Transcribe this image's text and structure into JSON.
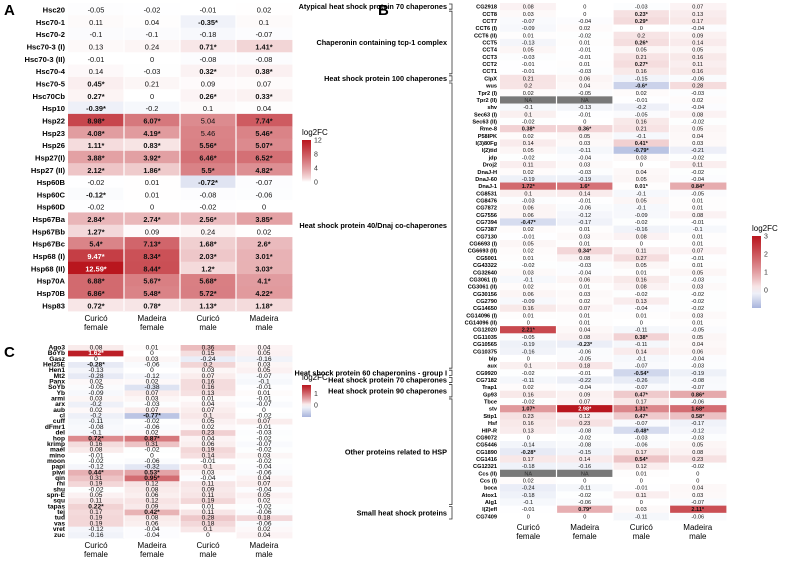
{
  "chart_data": [
    {
      "type": "heatmap",
      "panel_label": "A",
      "columns": [
        "Curicó\nfemale",
        "Madeira\nfemale",
        "Curicó\nmale",
        "Madeira\nmale"
      ],
      "rows": [
        "Hsc20",
        "Hsc70-1",
        "Hsc70-2",
        "Hsc70-3 (I)",
        "Hsc70-3 (II)",
        "Hsc70-4",
        "Hsc70-5",
        "Hsc70Cb",
        "Hsp10",
        "Hsp22",
        "Hsp23",
        "Hsp26",
        "Hsp27(I)",
        "Hsp27 (II)",
        "Hsp60B",
        "Hsp60C",
        "Hsp60D",
        "Hsp67Ba",
        "Hsp67Bb",
        "Hsp67Bc",
        "Hsp68 (I)",
        "Hsp68 (II)",
        "Hsp70A",
        "Hsp70B",
        "Hsp83"
      ],
      "values": [
        [
          "-0.05",
          "-0.02",
          "-0.01",
          "0.02"
        ],
        [
          "0.11",
          "0.04",
          "-0.35*",
          "0.1"
        ],
        [
          "-0.1",
          "-0.1",
          "-0.18",
          "-0.07"
        ],
        [
          "0.13",
          "0.24",
          "0.71*",
          "1.41*"
        ],
        [
          "-0.01",
          "0",
          "-0.08",
          "-0.08"
        ],
        [
          "0.14",
          "-0.03",
          "0.32*",
          "0.38*"
        ],
        [
          "0.45*",
          "0.21",
          "0.09",
          "0.07"
        ],
        [
          "0.27*",
          "0",
          "0.26*",
          "0.33*"
        ],
        [
          "-0.39*",
          "-0.2",
          "0.1",
          "0.04"
        ],
        [
          "8.98*",
          "6.07*",
          "5.04",
          "7.74*"
        ],
        [
          "4.08*",
          "4.19*",
          "5.46",
          "5.46*"
        ],
        [
          "1.11*",
          "0.83*",
          "5.56*",
          "5.07*"
        ],
        [
          "3.88*",
          "3.92*",
          "6.46*",
          "6.52*"
        ],
        [
          "2.12*",
          "1.86*",
          "5.5*",
          "4.82*"
        ],
        [
          "-0.02",
          "0.01",
          "-0.72*",
          "-0.07"
        ],
        [
          "-0.12*",
          "0.01",
          "-0.08",
          "-0.06"
        ],
        [
          "-0.02",
          "0",
          "-0.02",
          "0"
        ],
        [
          "2.84*",
          "2.74*",
          "2.56*",
          "3.85*"
        ],
        [
          "1.27*",
          "0.09",
          "0.24",
          "0.02"
        ],
        [
          "5.4*",
          "7.13*",
          "1.68*",
          "2.6*"
        ],
        [
          "9.47*",
          "8.34*",
          "2.03*",
          "3.01*"
        ],
        [
          "12.59*",
          "8.44*",
          "1.2*",
          "3.03*"
        ],
        [
          "6.88*",
          "5.67*",
          "5.68*",
          "4.1*"
        ],
        [
          "6.86*",
          "5.48*",
          "5.72*",
          "4.22*"
        ],
        [
          "0.72*",
          "0.78*",
          "1.13*",
          "1.18*"
        ]
      ],
      "legend": {
        "title": "log2FC",
        "ticks": [
          "12",
          "8",
          "4",
          "0"
        ],
        "range": [
          0,
          12
        ]
      }
    },
    {
      "type": "heatmap",
      "panel_label": "B",
      "columns": [
        "Curicó\nfemale",
        "Madeira\nfemale",
        "Curicó\nmale",
        "Madeira\nmale"
      ],
      "rows": [
        "CG2918",
        "CCT8",
        "CCT7",
        "CCT6 (I)",
        "CCT6 (II)",
        "CCT5",
        "CCT4",
        "CCT3",
        "CCT2",
        "CCT1",
        "ClpX",
        "wus",
        "Tpr2 (I)",
        "Tpr2 (II)",
        "shv",
        "Sec63 (I)",
        "Sec63 (II)",
        "Rme-8",
        "P58IPK",
        "l(3)80Fg",
        "l(2)tid",
        "jdp",
        "Droj2",
        "DnaJ-H",
        "DnaJ-60",
        "DnaJ-1",
        "CG8531",
        "CG8476",
        "CG7872",
        "CG7556",
        "CG7394",
        "CG7387",
        "CG7130",
        "CG6693 (I)",
        "CG6693 (II)",
        "CG5001",
        "CG43322",
        "CG32640",
        "CG3061 (I)",
        "CG3061 (II)",
        "CG30156",
        "CG2790",
        "CG14650",
        "CG14096 (I)",
        "CG14096 (II)",
        "CG12020",
        "CG11035",
        "CG10565",
        "CG10375",
        "blp",
        "aux",
        "CG9920",
        "CG7182",
        "Trap1",
        "Gp93",
        "Tbce",
        "stv",
        "Stip1",
        "Hsf",
        "HIP-R",
        "CG9072",
        "CG5446",
        "CG1890",
        "CG1416",
        "CG12321",
        "Ccs (II)",
        "Ccs (I)",
        "boca",
        "Atox1",
        "Alg1",
        "l(2)efl",
        "CG7409"
      ],
      "values": [
        [
          "0.08",
          "0",
          "-0.03",
          "0.07"
        ],
        [
          "0.03",
          "0",
          "0.23*",
          "0.13"
        ],
        [
          "-0.07",
          "-0.04",
          "0.29*",
          "0.17"
        ],
        [
          "-0.09",
          "0.02",
          "0",
          "-0.04"
        ],
        [
          "0.01",
          "-0.02",
          "0.2",
          "0.09"
        ],
        [
          "-0.13",
          "0.01",
          "0.26*",
          "0.14"
        ],
        [
          "0.05",
          "-0.01",
          "0.05",
          "0.05"
        ],
        [
          "-0.03",
          "-0.01",
          "0.21",
          "0.16"
        ],
        [
          "-0.01",
          "0.01",
          "0.27*",
          "0.11"
        ],
        [
          "-0.01",
          "-0.03",
          "0.16",
          "0.16"
        ],
        [
          "0.21",
          "0.06",
          "-0.15",
          "-0.06"
        ],
        [
          "0.2",
          "0.04",
          "-0.6*",
          "0.28"
        ],
        [
          "0.02",
          "-0.05",
          "0.02",
          "-0.03"
        ],
        [
          "NA",
          "NA",
          "-0.01",
          "0.02"
        ],
        [
          "-0.1",
          "-0.13",
          "-0.2",
          "-0.04"
        ],
        [
          "0.1",
          "-0.01",
          "-0.05",
          "0.08"
        ],
        [
          "-0.02",
          "0",
          "0.16",
          "-0.02"
        ],
        [
          "0.38*",
          "0.36*",
          "0.21",
          "0.05"
        ],
        [
          "0.02",
          "0.05",
          "-0.1",
          "0.04"
        ],
        [
          "0.14",
          "0.03",
          "0.41*",
          "0.03"
        ],
        [
          "0.05",
          "-0.11",
          "-0.79*",
          "-0.21"
        ],
        [
          "-0.02",
          "-0.04",
          "0.03",
          "-0.02"
        ],
        [
          "0.11",
          "0.03",
          "0",
          "0.11"
        ],
        [
          "0.02",
          "-0.03",
          "0.04",
          "-0.02"
        ],
        [
          "-0.19",
          "-0.19",
          "0.05",
          "-0.04"
        ],
        [
          "1.72*",
          "1.6*",
          "0.01*",
          "0.84*"
        ],
        [
          "0.1",
          "0.14",
          "-0.1",
          "-0.05"
        ],
        [
          "-0.03",
          "-0.01",
          "0.05",
          "0.01"
        ],
        [
          "0.06",
          "-0.06",
          "-0.1",
          "0.01"
        ],
        [
          "0.06",
          "-0.12",
          "-0.09",
          "0.08"
        ],
        [
          "-0.47*",
          "-0.17",
          "-0.02",
          "-0.01"
        ],
        [
          "0.02",
          "0.01",
          "-0.16",
          "-0.1"
        ],
        [
          "-0.01",
          "0.03",
          "0.08",
          "0.01"
        ],
        [
          "0.05",
          "0.01",
          "0",
          "0.01"
        ],
        [
          "0.02",
          "0.34*",
          "0.11",
          "0.07"
        ],
        [
          "0.01",
          "0.08",
          "0.27",
          "-0.01"
        ],
        [
          "-0.02",
          "-0.03",
          "0.05",
          "0.01"
        ],
        [
          "0.03",
          "-0.04",
          "0.01",
          "0.05"
        ],
        [
          "-0.1",
          "0.06",
          "0.16",
          "-0.03"
        ],
        [
          "0.02",
          "0.01",
          "0.08",
          "0.03"
        ],
        [
          "0.06",
          "0.03",
          "-0.02",
          "-0.02"
        ],
        [
          "-0.09",
          "0.02",
          "0.13",
          "-0.02"
        ],
        [
          "0.16",
          "0.07",
          "-0.04",
          "-0.02"
        ],
        [
          "0.01",
          "0.01",
          "0.01",
          "0.03"
        ],
        [
          "0",
          "0.01",
          "0",
          "0.01"
        ],
        [
          "2.21*",
          "0.04",
          "-0.11",
          "-0.05"
        ],
        [
          "-0.05",
          "0.08",
          "0.38*",
          "0.05"
        ],
        [
          "-0.19",
          "-0.23*",
          "-0.11",
          "0.04"
        ],
        [
          "-0.16",
          "-0.06",
          "0.14",
          "0.06"
        ],
        [
          "0",
          "-0.05",
          "-0.1",
          "-0.04"
        ],
        [
          "0.1",
          "0.18",
          "-0.07",
          "-0.03"
        ],
        [
          "-0.02",
          "-0.01",
          "-0.54*",
          "-0.19"
        ],
        [
          "-0.11",
          "-0.22",
          "-0.26",
          "-0.08"
        ],
        [
          "0.02",
          "-0.04",
          "-0.07",
          "-0.07"
        ],
        [
          "0.16",
          "0.09",
          "0.47*",
          "0.86*"
        ],
        [
          "-0.02",
          "0.07",
          "0.17",
          "-0.06"
        ],
        [
          "1.07*",
          "2.98*",
          "1.31*",
          "1.68*"
        ],
        [
          "0.23",
          "0.12",
          "0.47*",
          "0.58*"
        ],
        [
          "0.16",
          "0.23",
          "-0.07",
          "-0.17"
        ],
        [
          "0.13",
          "-0.08",
          "-0.48*",
          "-0.12"
        ],
        [
          "0",
          "-0.02",
          "-0.03",
          "-0.03"
        ],
        [
          "-0.14",
          "-0.08",
          "-0.06",
          "0.05"
        ],
        [
          "-0.28*",
          "-0.15",
          "0.17",
          "0.08"
        ],
        [
          "0.17",
          "0.14",
          "0.54*",
          "0.23"
        ],
        [
          "-0.18",
          "-0.16",
          "0.12",
          "-0.02"
        ],
        [
          "NA",
          "NA",
          "0.01",
          "0"
        ],
        [
          "0.02",
          "0",
          "0",
          "0"
        ],
        [
          "-0.24",
          "-0.11",
          "-0.01",
          "0.04"
        ],
        [
          "-0.18",
          "-0.02",
          "0.11",
          "0.03"
        ],
        [
          "-0.1",
          "-0.06",
          "0",
          "-0.07"
        ],
        [
          "-0.01",
          "0.79*",
          "0.03",
          "2.11*"
        ],
        [
          "0",
          "0",
          "-0.11",
          "-0.06"
        ]
      ],
      "groups": [
        {
          "label": "Atypical heat shock protein 70 chaperones",
          "start": 0,
          "end": 0
        },
        {
          "label": "Chaperonin containing tcp-1 complex",
          "start": 1,
          "end": 9
        },
        {
          "label": "Heat shock protein 100 chaperones",
          "start": 10,
          "end": 10
        },
        {
          "label": "Heat shock protein 40/Dnaj co-chaperones",
          "start": 11,
          "end": 50
        },
        {
          "label": "Heat shock protein 60 chaperonins - group I",
          "start": 51,
          "end": 51
        },
        {
          "label": "Heat shock protein 70 chaperones",
          "start": 52,
          "end": 52
        },
        {
          "label": "Heat shock protein 90 chaperones",
          "start": 53,
          "end": 54
        },
        {
          "label": "Other proteins related to HSP",
          "start": 55,
          "end": 69
        },
        {
          "label": "Small heat shock proteins",
          "start": 70,
          "end": 71
        }
      ],
      "legend": {
        "title": "log2FC",
        "ticks": [
          "3",
          "2",
          "1",
          "0"
        ],
        "range": [
          -1,
          3
        ]
      }
    },
    {
      "type": "heatmap",
      "panel_label": "C",
      "columns": [
        "Curicó\nfemale",
        "Madeira\nfemale",
        "Curicó\nmale",
        "Madeira\nmale"
      ],
      "rows": [
        "Ago3",
        "BoYb",
        "Gasz",
        "Hel25E",
        "Hen1",
        "Mt2",
        "Panx",
        "SoYb",
        "Yb",
        "armi",
        "arx",
        "aub",
        "cl",
        "cuff",
        "dFmr1",
        "del",
        "hop",
        "krimp",
        "mael",
        "mino",
        "moon",
        "papi",
        "piwi",
        "qin",
        "rhi",
        "shu",
        "spn-E",
        "squ",
        "tapas",
        "tej",
        "tud",
        "vas",
        "vret",
        "zuc"
      ],
      "values": [
        [
          "0.08",
          "0.01",
          "0.36",
          "0.04"
        ],
        [
          "1.62*",
          "0",
          "0.15",
          "0.05"
        ],
        [
          "0",
          "0.03",
          "-0.24",
          "-0.16"
        ],
        [
          "-0.28*",
          "-0.06",
          "0.2",
          "0.03"
        ],
        [
          "-0.13",
          "0",
          "0.03",
          "0.05"
        ],
        [
          "-0.28",
          "-0.12",
          "0.07",
          "-0.07"
        ],
        [
          "0.02",
          "0.02",
          "0.16",
          "-0.1"
        ],
        [
          "-0.05",
          "-0.38",
          "0.16",
          "-0.01"
        ],
        [
          "-0.09",
          "0.07",
          "0.13",
          "0.01"
        ],
        [
          "0.03",
          "0.03",
          "0.01",
          "-0.01"
        ],
        [
          "-0.2",
          "-0.03",
          "0.04",
          "-0.07"
        ],
        [
          "0.02",
          "0.07",
          "0.07",
          "0"
        ],
        [
          "-0.2",
          "-0.77*",
          "0.1",
          "-0.02"
        ],
        [
          "-0.11",
          "-0.02",
          "0.05",
          "0.07"
        ],
        [
          "-0.08",
          "-0.06",
          "0.02",
          "-0.01"
        ],
        [
          "-0.1",
          "0.02",
          "0.23",
          "-0.03"
        ],
        [
          "0.72*",
          "0.87*",
          "0.04",
          "-0.02"
        ],
        [
          "0.16",
          "0.31",
          "0.06",
          "-0.07"
        ],
        [
          "0.08",
          "-0.02",
          "0.19",
          "-0.02"
        ],
        [
          "-0.01",
          "0",
          "0.14",
          "0.03"
        ],
        [
          "-0.02",
          "-0.06",
          "-0.01",
          "-0.02"
        ],
        [
          "-0.12",
          "-0.32",
          "0.1",
          "-0.04"
        ],
        [
          "0.44*",
          "0.53*",
          "0.03",
          "-0.06"
        ],
        [
          "0.31",
          "0.95*",
          "-0.04",
          "0.04"
        ],
        [
          "0.19",
          "0.12",
          "0.11",
          "0.07"
        ],
        [
          "-0.02",
          "0.08",
          "0.09",
          "-0.04"
        ],
        [
          "0.05",
          "0.06",
          "0.11",
          "0.05"
        ],
        [
          "0.11",
          "0.12",
          "0.19",
          "0.02"
        ],
        [
          "0.22*",
          "0.09",
          "0.01",
          "-0.02"
        ],
        [
          "0.17",
          "0.42*",
          "0.11",
          "-0.06"
        ],
        [
          "0.19",
          "0.08",
          "0.28",
          "0.18"
        ],
        [
          "0.19",
          "0.06",
          "0.18",
          "-0.06"
        ],
        [
          "-0.12",
          "-0.04",
          "0.1",
          "0.02"
        ],
        [
          "-0.16",
          "-0.04",
          "0",
          "0.04"
        ]
      ],
      "legend": {
        "title": "log2FC",
        "ticks": [
          "1",
          "0"
        ],
        "range": [
          -1,
          1.7
        ]
      }
    }
  ]
}
